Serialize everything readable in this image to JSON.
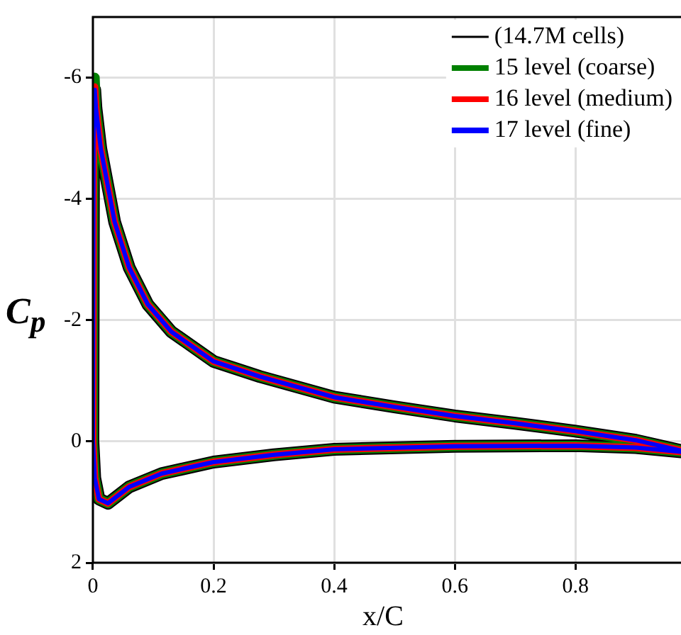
{
  "chart_data": {
    "type": "line",
    "xlabel": "x/C",
    "ylabel": "C$_{p}$",
    "xlim": [
      0,
      0.975
    ],
    "ylim": [
      2,
      -7
    ],
    "xticks": [
      0,
      0.2,
      0.4,
      0.6,
      0.8
    ],
    "yticks": [
      -6,
      -4,
      -2,
      0,
      2
    ],
    "grid": true,
    "legend": "top right",
    "marker": "none",
    "line_style": "solid",
    "series": [
      {
        "name": "(14.7M cells)",
        "color": "#000000",
        "x": [
          0.975,
          0.9,
          0.8,
          0.7,
          0.6,
          0.5,
          0.4,
          0.277,
          0.2,
          0.13,
          0.091,
          0.06,
          0.036,
          0.013,
          0.005,
          0.003,
          0.001,
          0,
          0.003,
          0.01,
          0.025,
          0.06,
          0.114,
          0.2,
          0.3,
          0.4,
          0.6,
          0.8,
          0.9,
          0.975
        ],
        "values": [
          0.15,
          -0.02,
          -0.17,
          -0.3,
          -0.42,
          -0.57,
          -0.73,
          -1.07,
          -1.32,
          -1.81,
          -2.26,
          -2.87,
          -3.62,
          -4.83,
          -5.5,
          -5.8,
          -5,
          0,
          0.6,
          0.95,
          1.02,
          0.75,
          0.53,
          0.34,
          0.22,
          0.13,
          0.08,
          0.07,
          0.1,
          0.17
        ]
      },
      {
        "name": "15 level (coarse)",
        "color": "#008000",
        "x": [
          0.975,
          0.9,
          0.8,
          0.7,
          0.6,
          0.5,
          0.4,
          0.277,
          0.2,
          0.13,
          0.091,
          0.06,
          0.036,
          0.013,
          0.005,
          0.003,
          0.001,
          0,
          0.003,
          0.01,
          0.025,
          0.06,
          0.114,
          0.2,
          0.3,
          0.4,
          0.6,
          0.8,
          0.9,
          0.975
        ],
        "values": [
          0.15,
          -0.02,
          -0.17,
          -0.3,
          -0.42,
          -0.57,
          -0.73,
          -1.07,
          -1.32,
          -1.81,
          -2.26,
          -2.87,
          -3.62,
          -4.83,
          -5.5,
          -6,
          -5,
          0,
          0.6,
          0.95,
          1.02,
          0.75,
          0.53,
          0.34,
          0.22,
          0.13,
          0.08,
          0.07,
          0.1,
          0.17
        ]
      },
      {
        "name": "16 level (medium)",
        "color": "#ff0000",
        "x": [
          0.975,
          0.9,
          0.8,
          0.7,
          0.6,
          0.5,
          0.4,
          0.277,
          0.2,
          0.13,
          0.091,
          0.06,
          0.036,
          0.013,
          0.005,
          0.003,
          0.001,
          0,
          0.003,
          0.01,
          0.025,
          0.06,
          0.114,
          0.2,
          0.3,
          0.4,
          0.6,
          0.8,
          0.9,
          0.975
        ],
        "values": [
          0.15,
          -0.02,
          -0.17,
          -0.3,
          -0.42,
          -0.57,
          -0.73,
          -1.07,
          -1.32,
          -1.81,
          -2.26,
          -2.87,
          -3.62,
          -4.83,
          -5.5,
          -5.85,
          -5,
          0,
          0.6,
          0.95,
          1.02,
          0.75,
          0.53,
          0.34,
          0.22,
          0.13,
          0.08,
          0.07,
          0.1,
          0.17
        ]
      },
      {
        "name": "17 level (fine)",
        "color": "#0000ff",
        "x": [
          0.975,
          0.9,
          0.8,
          0.7,
          0.6,
          0.5,
          0.4,
          0.277,
          0.2,
          0.13,
          0.091,
          0.06,
          0.036,
          0.013,
          0.005,
          0.003,
          0.001,
          0,
          0.003,
          0.01,
          0.025,
          0.06,
          0.114,
          0.2,
          0.3,
          0.4,
          0.6,
          0.8,
          0.9,
          0.975
        ],
        "values": [
          0.15,
          -0.02,
          -0.17,
          -0.3,
          -0.42,
          -0.57,
          -0.73,
          -1.07,
          -1.32,
          -1.81,
          -2.26,
          -2.87,
          -3.62,
          -4.83,
          -5.5,
          -5.8,
          -5,
          0,
          0.6,
          0.95,
          1.02,
          0.75,
          0.53,
          0.34,
          0.22,
          0.13,
          0.08,
          0.07,
          0.1,
          0.17
        ]
      }
    ]
  }
}
